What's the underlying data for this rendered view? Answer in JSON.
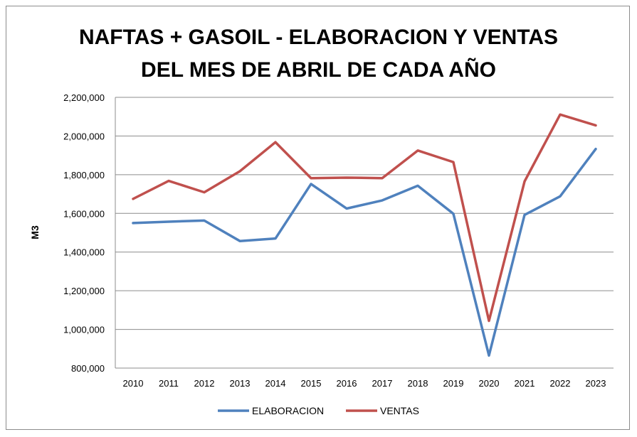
{
  "chart_data": {
    "type": "line",
    "title_line1": "NAFTAS + GASOIL - ELABORACION Y VENTAS",
    "title_line2": "DEL MES DE ABRIL DE CADA AÑO",
    "xlabel": "",
    "ylabel": "M3",
    "x": [
      "2010",
      "2011",
      "2012",
      "2013",
      "2014",
      "2015",
      "2016",
      "2017",
      "2018",
      "2019",
      "2020",
      "2021",
      "2022",
      "2023"
    ],
    "ylim": [
      800000,
      2200000
    ],
    "yticks": [
      800000,
      1000000,
      1200000,
      1400000,
      1600000,
      1800000,
      2000000,
      2200000
    ],
    "ytick_labels": [
      "800,000",
      "1,000,000",
      "1,200,000",
      "1,400,000",
      "1,600,000",
      "1,800,000",
      "2,000,000",
      "2,200,000"
    ],
    "grid": true,
    "legend_position": "bottom",
    "series": [
      {
        "name": "ELABORACION",
        "color": "#4f81bd",
        "values": [
          1550000,
          1557000,
          1563000,
          1457000,
          1470000,
          1752000,
          1625000,
          1667000,
          1743000,
          1598000,
          865000,
          1592000,
          1688000,
          1933000
        ]
      },
      {
        "name": "VENTAS",
        "color": "#c0504d",
        "values": [
          1675000,
          1768000,
          1709000,
          1818000,
          1968000,
          1782000,
          1785000,
          1782000,
          1925000,
          1865000,
          1044000,
          1765000,
          2111000,
          2055000
        ]
      }
    ]
  }
}
